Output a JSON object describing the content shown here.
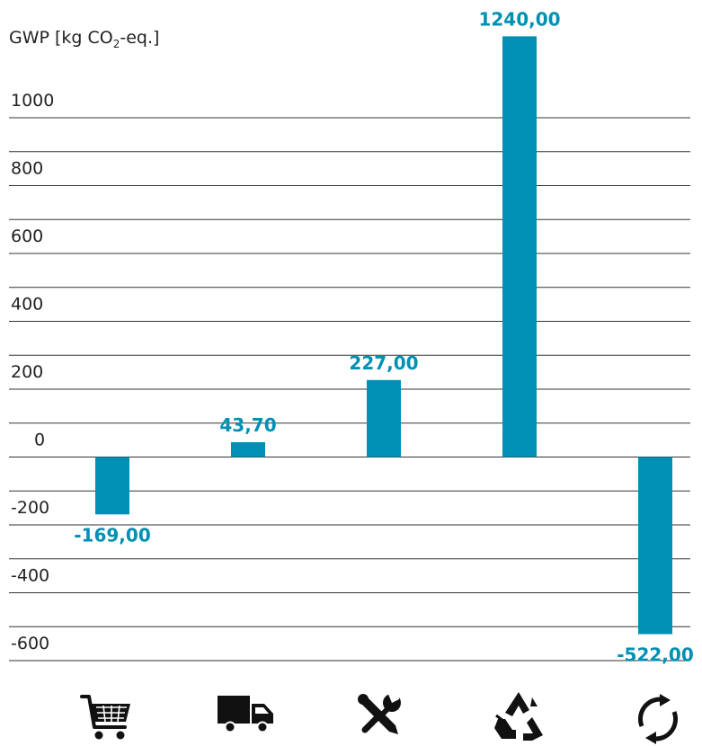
{
  "chart_data": {
    "type": "bar",
    "ylabel": {
      "prefix": "GWP [kg CO",
      "subscript": "2",
      "suffix": "-eq.]"
    },
    "categories": [
      "purchase",
      "transport",
      "use-maintenance",
      "recycling",
      "circular-reuse"
    ],
    "values": [
      -169.0,
      43.7,
      227.0,
      1240.0,
      -522.0
    ],
    "value_labels": [
      "-169,00",
      "43,70",
      "227,00",
      "1240,00",
      "-522,00"
    ],
    "ylim": [
      -600,
      1000
    ],
    "yticks": [
      1000,
      800,
      600,
      400,
      200,
      0,
      -200,
      -400,
      -600
    ],
    "ytick_labels": [
      "1000",
      "800",
      "600",
      "400",
      "200",
      "0",
      "-200",
      "-400",
      "-600"
    ],
    "grid": true,
    "bar_color": "#0090b4",
    "label_color": "#0090b4",
    "category_icons": [
      "cart-icon",
      "truck-icon",
      "tools-icon",
      "recycle-icon",
      "circular-arrows-icon"
    ]
  }
}
